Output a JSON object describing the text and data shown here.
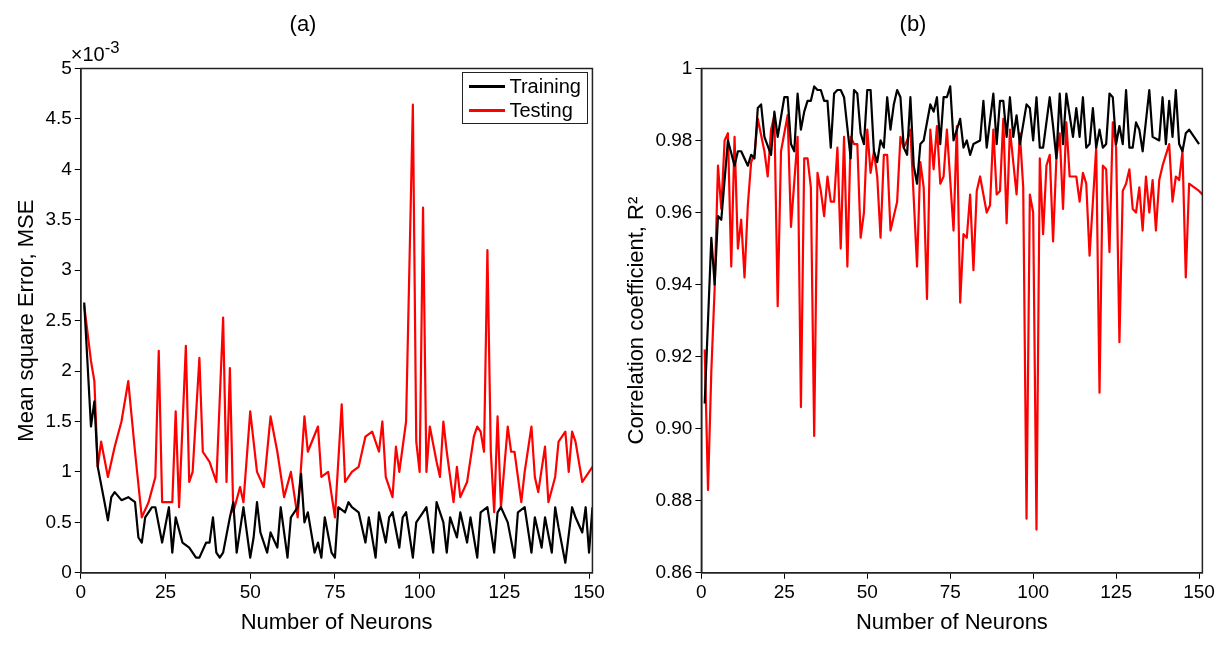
{
  "chart_data": [
    {
      "type": "line",
      "title": "(a)",
      "xlabel": "Number of Neurons",
      "ylabel": "Mean square Error, MSE",
      "annotations": [
        "×10$^{-3}$"
      ],
      "xlim": [
        0,
        151
      ],
      "xticks": [
        0,
        25,
        50,
        75,
        100,
        125,
        150
      ],
      "ylim": [
        0,
        5
      ],
      "yticks": [
        0,
        0.5,
        1,
        1.5,
        2,
        2.5,
        3,
        3.5,
        4,
        4.5,
        5
      ],
      "grid": false,
      "legend": "top right",
      "marker": "none",
      "line_style": "solid",
      "series": [
        {
          "name": "Training",
          "color": "#000000",
          "x": [
            1,
            3,
            4,
            5,
            7,
            8,
            9,
            10,
            12,
            14,
            16,
            17,
            18,
            19,
            21,
            22,
            24,
            26,
            27,
            28,
            30,
            32,
            34,
            35,
            37,
            38,
            39,
            40,
            41,
            42,
            44,
            45,
            46,
            48,
            50,
            51,
            52,
            53,
            55,
            56,
            58,
            59,
            61,
            62,
            64,
            65,
            66,
            67,
            69,
            70,
            71,
            72,
            74,
            75,
            76,
            78,
            79,
            80,
            82,
            84,
            85,
            87,
            88,
            90,
            91,
            92,
            94,
            95,
            96,
            98,
            99,
            101,
            102,
            104,
            105,
            107,
            108,
            109,
            111,
            112,
            114,
            115,
            117,
            118,
            120,
            122,
            123,
            124,
            126,
            128,
            129,
            131,
            133,
            134,
            136,
            137,
            139,
            140,
            141,
            143,
            145,
            146,
            148,
            149,
            150,
            151
          ],
          "values": [
            2.68,
            1.45,
            1.7,
            1.05,
            0.7,
            0.52,
            0.75,
            0.8,
            0.72,
            0.75,
            0.7,
            0.35,
            0.3,
            0.55,
            0.65,
            0.65,
            0.3,
            0.65,
            0.2,
            0.55,
            0.3,
            0.25,
            0.15,
            0.15,
            0.3,
            0.3,
            0.55,
            0.2,
            0.15,
            0.2,
            0.55,
            0.7,
            0.2,
            0.65,
            0.15,
            0.35,
            0.7,
            0.4,
            0.2,
            0.4,
            0.25,
            0.65,
            0.15,
            0.55,
            0.65,
            0.98,
            0.5,
            0.6,
            0.2,
            0.3,
            0.15,
            0.55,
            0.2,
            0.15,
            0.65,
            0.6,
            0.7,
            0.65,
            0.6,
            0.3,
            0.55,
            0.15,
            0.6,
            0.3,
            0.55,
            0.6,
            0.25,
            0.55,
            0.6,
            0.15,
            0.5,
            0.6,
            0.65,
            0.2,
            0.7,
            0.5,
            0.2,
            0.55,
            0.35,
            0.6,
            0.3,
            0.55,
            0.15,
            0.6,
            0.65,
            0.2,
            0.6,
            0.65,
            0.5,
            0.15,
            0.6,
            0.65,
            0.2,
            0.55,
            0.25,
            0.55,
            0.2,
            0.65,
            0.45,
            0.1,
            0.65,
            0.55,
            0.4,
            0.65,
            0.2,
            0.65
          ]
        },
        {
          "name": "Testing",
          "color": "#ff0000",
          "x": [
            1,
            3,
            4,
            5,
            6,
            8,
            10,
            12,
            14,
            16,
            18,
            20,
            22,
            23,
            24,
            27,
            28,
            29,
            31,
            32,
            33,
            35,
            36,
            38,
            40,
            42,
            43,
            44,
            45,
            47,
            48,
            50,
            52,
            54,
            56,
            58,
            60,
            62,
            64,
            66,
            67,
            70,
            71,
            73,
            75,
            77,
            78,
            80,
            82,
            84,
            86,
            88,
            89,
            90,
            92,
            93,
            94,
            96,
            98,
            99,
            100,
            101,
            102,
            103,
            105,
            106,
            107,
            108,
            110,
            111,
            112,
            114,
            116,
            117,
            118,
            119,
            120,
            121,
            122,
            123,
            124,
            126,
            127,
            128,
            130,
            131,
            133,
            134,
            135,
            137,
            138,
            140,
            141,
            143,
            144,
            145,
            146,
            148,
            150,
            151
          ],
          "values": [
            2.65,
            2.1,
            1.9,
            1.05,
            1.3,
            0.95,
            1.25,
            1.5,
            1.9,
            1.2,
            0.55,
            0.7,
            0.95,
            2.2,
            0.7,
            0.7,
            1.6,
            0.65,
            2.25,
            0.9,
            1.0,
            2.13,
            1.2,
            1.1,
            0.9,
            2.53,
            0.9,
            2.03,
            0.6,
            0.85,
            0.7,
            1.6,
            1.0,
            0.85,
            1.55,
            1.2,
            0.75,
            1.0,
            0.55,
            1.55,
            1.2,
            1.45,
            0.95,
            1.0,
            0.55,
            1.67,
            0.9,
            1.0,
            1.05,
            1.35,
            1.4,
            1.2,
            1.5,
            0.95,
            0.75,
            1.25,
            1.0,
            1.5,
            4.64,
            1.3,
            1.0,
            3.62,
            1.0,
            1.45,
            1.1,
            0.95,
            1.5,
            1.2,
            0.7,
            1.05,
            0.75,
            0.9,
            1.35,
            1.45,
            1.4,
            1.2,
            3.2,
            1.2,
            0.6,
            1.55,
            0.65,
            1.45,
            1.2,
            1.2,
            0.7,
            1.0,
            1.45,
            0.95,
            0.8,
            1.25,
            0.7,
            0.95,
            1.3,
            1.4,
            1.0,
            1.4,
            1.3,
            0.9,
            1.0,
            1.05
          ]
        }
      ]
    },
    {
      "type": "line",
      "title": "(b)",
      "xlabel": "Number of Neurons",
      "ylabel": "Correlation coefficient, R²",
      "xlim": [
        0,
        151
      ],
      "xticks": [
        0,
        25,
        50,
        75,
        100,
        125,
        150
      ],
      "ylim": [
        0.86,
        1
      ],
      "yticks": [
        0.86,
        0.88,
        {
          "value": 0.9,
          "label": "0.90"
        },
        0.92,
        0.94,
        0.96,
        0.98,
        1
      ],
      "grid": false,
      "marker": "none",
      "line_style": "solid",
      "series": [
        {
          "color": "#000000",
          "x": [
            1,
            3,
            4,
            5,
            6,
            8,
            10,
            11,
            12,
            14,
            15,
            16,
            17,
            18,
            19,
            21,
            22,
            23,
            25,
            26,
            27,
            28,
            29,
            30,
            31,
            32,
            33,
            34,
            35,
            36,
            37,
            38,
            39,
            40,
            41,
            42,
            43,
            45,
            46,
            47,
            48,
            49,
            50,
            51,
            52,
            53,
            54,
            55,
            56,
            57,
            58,
            59,
            60,
            61,
            62,
            63,
            64,
            65,
            66,
            67,
            69,
            70,
            71,
            72,
            73,
            74,
            75,
            76,
            78,
            79,
            80,
            81,
            82,
            84,
            85,
            86,
            88,
            89,
            90,
            91,
            92,
            93,
            94,
            95,
            96,
            98,
            99,
            100,
            101,
            102,
            103,
            105,
            106,
            107,
            108,
            109,
            110,
            112,
            113,
            114,
            115,
            116,
            117,
            118,
            119,
            120,
            121,
            122,
            123,
            124,
            125,
            126,
            127,
            128,
            129,
            130,
            131,
            132,
            133,
            135,
            136,
            138,
            139,
            140,
            141,
            142,
            143,
            144,
            145,
            146,
            147,
            150
          ],
          "values": [
            0.907,
            0.953,
            0.94,
            0.959,
            0.958,
            0.98,
            0.973,
            0.977,
            0.977,
            0.973,
            0.976,
            0.975,
            0.989,
            0.99,
            0.981,
            0.976,
            0.988,
            0.981,
            0.992,
            0.992,
            0.979,
            0.977,
            0.993,
            0.983,
            0.988,
            0.991,
            0.991,
            0.995,
            0.994,
            0.994,
            0.991,
            0.991,
            0.978,
            0.993,
            0.994,
            0.994,
            0.992,
            0.975,
            0.994,
            0.993,
            0.982,
            0.979,
            0.994,
            0.994,
            0.977,
            0.974,
            0.98,
            0.978,
            0.992,
            0.983,
            0.99,
            0.994,
            0.992,
            0.978,
            0.976,
            0.992,
            0.973,
            0.968,
            0.979,
            0.98,
            0.99,
            0.988,
            0.992,
            0.979,
            0.992,
            0.992,
            0.995,
            0.98,
            0.986,
            0.978,
            0.98,
            0.976,
            0.979,
            0.98,
            0.991,
            0.978,
            0.993,
            0.979,
            0.991,
            0.991,
            0.981,
            0.992,
            0.981,
            0.987,
            0.979,
            0.99,
            0.989,
            0.98,
            0.992,
            0.978,
            0.978,
            0.992,
            0.984,
            0.975,
            0.993,
            0.979,
            0.993,
            0.981,
            0.989,
            0.981,
            0.992,
            0.978,
            0.979,
            0.989,
            0.978,
            0.983,
            0.978,
            0.979,
            0.993,
            0.992,
            0.979,
            0.984,
            0.979,
            0.994,
            0.978,
            0.978,
            0.985,
            0.983,
            0.977,
            0.994,
            0.981,
            0.98,
            0.992,
            0.979,
            0.991,
            0.981,
            0.994,
            0.979,
            0.977,
            0.982,
            0.983,
            0.979
          ]
        },
        {
          "color": "#ff0000",
          "x": [
            1,
            2,
            3,
            4,
            5,
            6,
            7,
            8,
            9,
            10,
            11,
            12,
            13,
            14,
            15,
            16,
            17,
            19,
            20,
            21,
            22,
            23,
            24,
            26,
            27,
            29,
            30,
            31,
            32,
            33,
            34,
            35,
            36,
            37,
            38,
            39,
            40,
            41,
            42,
            43,
            44,
            45,
            46,
            47,
            48,
            49,
            50,
            51,
            52,
            53,
            54,
            55,
            56,
            57,
            59,
            60,
            61,
            62,
            63,
            65,
            66,
            67,
            68,
            69,
            70,
            71,
            72,
            73,
            74,
            76,
            77,
            78,
            79,
            80,
            81,
            82,
            83,
            84,
            86,
            87,
            88,
            89,
            90,
            91,
            92,
            93,
            95,
            96,
            97,
            98,
            99,
            100,
            101,
            102,
            103,
            104,
            105,
            106,
            107,
            108,
            109,
            110,
            111,
            112,
            113,
            114,
            115,
            116,
            117,
            119,
            120,
            121,
            122,
            123,
            124,
            125,
            126,
            127,
            128,
            129,
            130,
            131,
            132,
            133,
            134,
            135,
            136,
            137,
            138,
            139,
            141,
            142,
            143,
            144,
            145,
            146,
            147,
            150,
            151
          ],
          "values": [
            0.922,
            0.883,
            0.916,
            0.939,
            0.973,
            0.961,
            0.98,
            0.982,
            0.945,
            0.981,
            0.95,
            0.958,
            0.942,
            0.962,
            0.974,
            0.976,
            0.986,
            0.977,
            0.97,
            0.983,
            0.987,
            0.934,
            0.977,
            0.987,
            0.956,
            0.981,
            0.906,
            0.975,
            0.975,
            0.967,
            0.898,
            0.971,
            0.966,
            0.959,
            0.97,
            0.963,
            0.963,
            0.978,
            0.95,
            0.981,
            0.945,
            0.981,
            0.979,
            0.979,
            0.953,
            0.96,
            0.983,
            0.971,
            0.977,
            0.97,
            0.953,
            0.976,
            0.976,
            0.955,
            0.963,
            0.981,
            0.978,
            0.98,
            0.983,
            0.945,
            0.974,
            0.967,
            0.936,
            0.983,
            0.972,
            0.984,
            0.968,
            0.97,
            0.983,
            0.955,
            0.984,
            0.935,
            0.954,
            0.953,
            0.965,
            0.944,
            0.966,
            0.97,
            0.96,
            0.962,
            0.983,
            0.965,
            0.966,
            0.986,
            0.957,
            0.983,
            0.965,
            0.982,
            0.967,
            0.875,
            0.965,
            0.96,
            0.872,
            0.975,
            0.954,
            0.973,
            0.976,
            0.952,
            0.975,
            0.982,
            0.961,
            0.985,
            0.97,
            0.97,
            0.97,
            0.963,
            0.971,
            0.968,
            0.948,
            0.978,
            0.91,
            0.973,
            0.972,
            0.949,
            0.985,
            0.978,
            0.924,
            0.966,
            0.968,
            0.972,
            0.961,
            0.96,
            0.967,
            0.955,
            0.97,
            0.96,
            0.969,
            0.955,
            0.969,
            0.973,
            0.979,
            0.963,
            0.97,
            0.969,
            0.977,
            0.942,
            0.968,
            0.966,
            0.965
          ]
        }
      ]
    }
  ]
}
